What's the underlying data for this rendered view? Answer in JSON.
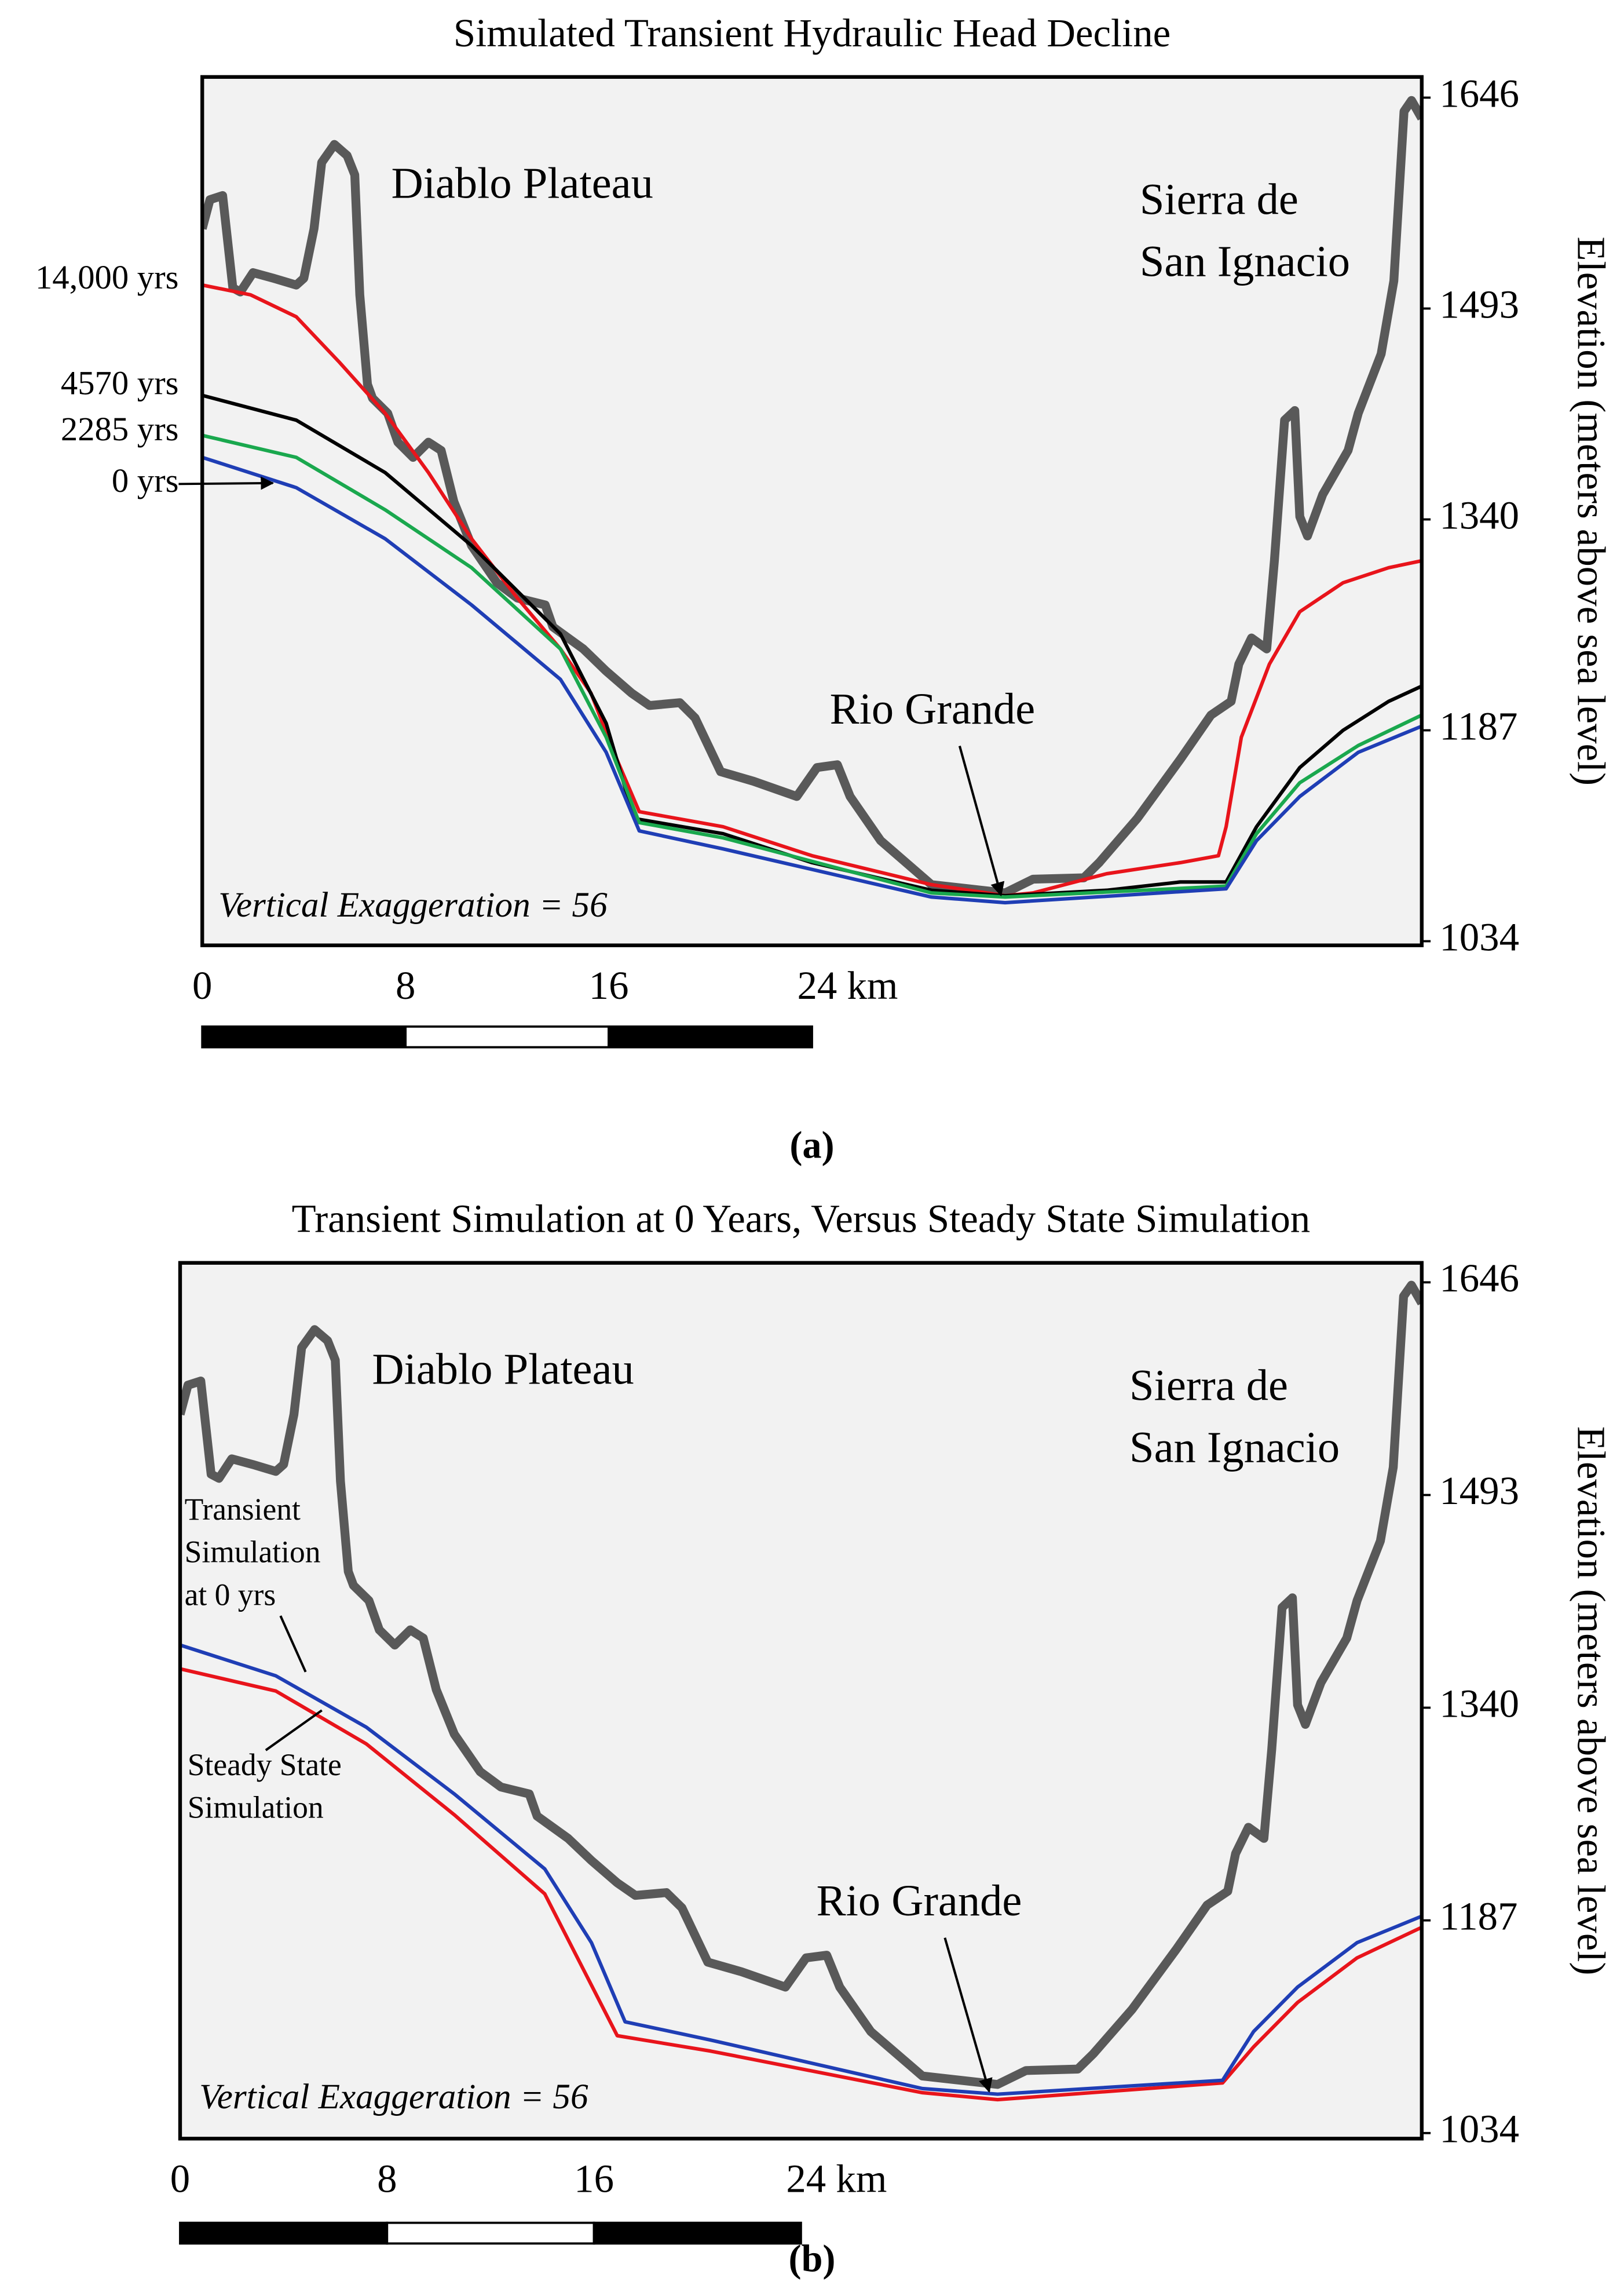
{
  "chart_data": [
    {
      "type": "line",
      "title": "Simulated Transient Hydraulic Head Decline",
      "panel": "(a)",
      "y_label": "Elevation (meters above sea level)",
      "xlim": [
        0,
        48
      ],
      "ylim": [
        1031,
        1661
      ],
      "yticks": [
        1034,
        1187,
        1340,
        1493,
        1646
      ],
      "y_side": "right",
      "scalebar": [
        0,
        8,
        16,
        {
          "value": 24,
          "label": "24 km"
        }
      ],
      "annotations": [
        "Diablo Plateau",
        [
          "Sierra de",
          "San Ignacio"
        ],
        "Rio Grande",
        "Vertical Exaggeration = 56"
      ],
      "series": [
        {
          "color": "#595959",
          "x": [
            0.0,
            0.3,
            0.8,
            1.2,
            1.5,
            2.0,
            2.8,
            3.7,
            4.0,
            4.4,
            4.7,
            5.2,
            5.7,
            6.0,
            6.2,
            6.5,
            6.7,
            7.3,
            7.7,
            8.3,
            8.9,
            9.4,
            9.9,
            10.6,
            11.6,
            12.4,
            13.5,
            13.8,
            15.0,
            15.9,
            16.9,
            17.6,
            18.8,
            19.4,
            20.4,
            21.7,
            23.4,
            24.2,
            25.0,
            25.5,
            26.7,
            28.7,
            31.6,
            32.7,
            34.7,
            35.3,
            36.8,
            38.5,
            39.7,
            40.5,
            40.8,
            41.3,
            41.9,
            42.2,
            42.6,
            43.0,
            43.2,
            43.5,
            44.1,
            45.1,
            45.5,
            46.4,
            46.9,
            47.3,
            47.6,
            48.0
          ],
          "values": [
            1551,
            1572,
            1575,
            1508,
            1505,
            1519,
            1515,
            1510,
            1515,
            1551,
            1599,
            1612,
            1604,
            1590,
            1503,
            1438,
            1428,
            1417,
            1396,
            1385,
            1396,
            1390,
            1353,
            1321,
            1294,
            1283,
            1278,
            1262,
            1246,
            1230,
            1214,
            1205,
            1207,
            1196,
            1157,
            1150,
            1139,
            1160,
            1162,
            1139,
            1107,
            1075,
            1069,
            1079,
            1080,
            1091,
            1123,
            1166,
            1198,
            1208,
            1235,
            1254,
            1246,
            1310,
            1412,
            1419,
            1342,
            1328,
            1358,
            1390,
            1417,
            1460,
            1513,
            1636,
            1644,
            1631
          ]
        },
        {
          "name": "14,000 yrs",
          "color": "#e8141b",
          "x": [
            0,
            1.9,
            3.7,
            5.4,
            7.2,
            8.9,
            10.6,
            12.4,
            14.1,
            15.3,
            16.2,
            17.2,
            20.5,
            24.0,
            28.7,
            31.6,
            32.7,
            35.6,
            38.5,
            40.0,
            40.3,
            40.9,
            42.0,
            43.2,
            44.9,
            46.7,
            48.0
          ],
          "values": [
            1510,
            1503,
            1487,
            1454,
            1417,
            1374,
            1326,
            1283,
            1246,
            1214,
            1171,
            1128,
            1117,
            1096,
            1075,
            1067,
            1069,
            1083,
            1091,
            1096,
            1117,
            1182,
            1235,
            1273,
            1294,
            1305,
            1310
          ]
        },
        {
          "name": "4570 yrs",
          "color": "#000000",
          "x": [
            0,
            3.7,
            7.2,
            10.6,
            14.1,
            15.9,
            17.0,
            20.5,
            24.0,
            28.7,
            31.6,
            35.6,
            38.5,
            40.3,
            41.5,
            43.2,
            44.9,
            46.7,
            48.0
          ],
          "values": [
            1430,
            1412,
            1374,
            1321,
            1257,
            1192,
            1123,
            1112,
            1091,
            1071,
            1067,
            1071,
            1077,
            1077,
            1117,
            1160,
            1187,
            1208,
            1219
          ]
        },
        {
          "name": "2285 yrs",
          "color": "#1aa84e",
          "x": [
            0,
            3.7,
            7.2,
            10.6,
            14.1,
            15.9,
            17.2,
            20.5,
            28.7,
            31.6,
            40.3,
            41.5,
            43.2,
            45.5,
            48.0
          ],
          "values": [
            1401,
            1385,
            1347,
            1305,
            1246,
            1182,
            1120,
            1109,
            1069,
            1066,
            1074,
            1112,
            1149,
            1176,
            1198
          ]
        },
        {
          "name": "0 yrs",
          "color": "#1f3eb5",
          "x": [
            0,
            3.7,
            7.2,
            10.6,
            14.1,
            15.9,
            17.2,
            20.5,
            28.7,
            31.6,
            40.3,
            41.5,
            43.2,
            45.5,
            48.0
          ],
          "values": [
            1385,
            1363,
            1326,
            1278,
            1224,
            1171,
            1114,
            1101,
            1066,
            1062,
            1072,
            1107,
            1139,
            1171,
            1190
          ]
        }
      ]
    },
    {
      "type": "line",
      "title": "Transient Simulation at 0 Years, Versus Steady State Simulation",
      "panel": "(b)",
      "y_label": "Elevation (meters above sea level)",
      "xlim": [
        0,
        48
      ],
      "ylim": [
        1030,
        1660
      ],
      "yticks": [
        1034,
        1187,
        1340,
        1493,
        1646
      ],
      "y_side": "right",
      "scalebar": [
        0,
        8,
        16,
        {
          "value": 24,
          "label": "24 km"
        }
      ],
      "annotations": [
        "Diablo Plateau",
        [
          "Sierra de",
          "San Ignacio"
        ],
        "Rio Grande",
        "Vertical Exaggeration = 56"
      ],
      "series": [
        {
          "color": "#595959",
          "x": [
            0.0,
            0.3,
            0.8,
            1.2,
            1.5,
            2.0,
            2.8,
            3.7,
            4.0,
            4.4,
            4.7,
            5.2,
            5.7,
            6.0,
            6.2,
            6.5,
            6.7,
            7.3,
            7.7,
            8.3,
            8.9,
            9.4,
            9.9,
            10.6,
            11.6,
            12.4,
            13.5,
            13.8,
            15.0,
            15.9,
            16.9,
            17.6,
            18.8,
            19.4,
            20.4,
            21.7,
            23.4,
            24.2,
            25.0,
            25.5,
            26.7,
            28.7,
            31.6,
            32.7,
            34.7,
            35.3,
            36.8,
            38.5,
            39.7,
            40.5,
            40.8,
            41.3,
            41.9,
            42.2,
            42.6,
            43.0,
            43.2,
            43.5,
            44.1,
            45.1,
            45.5,
            46.4,
            46.9,
            47.3,
            47.6,
            48.0
          ],
          "values": [
            1551,
            1572,
            1575,
            1508,
            1505,
            1519,
            1515,
            1510,
            1515,
            1551,
            1599,
            1612,
            1604,
            1590,
            1503,
            1438,
            1428,
            1417,
            1396,
            1385,
            1396,
            1390,
            1353,
            1321,
            1294,
            1283,
            1278,
            1262,
            1246,
            1230,
            1214,
            1205,
            1207,
            1196,
            1157,
            1150,
            1139,
            1160,
            1162,
            1139,
            1107,
            1075,
            1069,
            1079,
            1080,
            1091,
            1123,
            1166,
            1198,
            1208,
            1235,
            1254,
            1246,
            1310,
            1412,
            1419,
            1342,
            1328,
            1358,
            1390,
            1417,
            1460,
            1513,
            1636,
            1644,
            1631
          ]
        },
        {
          "name": [
            "Steady State",
            "Simulation"
          ],
          "color": "#e8141b",
          "x": [
            0,
            3.7,
            7.2,
            10.6,
            14.1,
            16.9,
            20.5,
            28.7,
            31.6,
            40.3,
            41.5,
            43.2,
            45.5,
            48.0
          ],
          "values": [
            1368,
            1352,
            1314,
            1263,
            1206,
            1104,
            1093,
            1063,
            1058,
            1070,
            1096,
            1128,
            1160,
            1182
          ]
        },
        {
          "name": [
            "Transient",
            "Simulation",
            "at 0 yrs"
          ],
          "color": "#1f3eb5",
          "x": [
            0,
            3.7,
            7.2,
            10.6,
            14.1,
            15.9,
            17.2,
            20.5,
            28.7,
            31.6,
            40.3,
            41.5,
            43.2,
            45.5,
            48.0
          ],
          "values": [
            1385,
            1363,
            1326,
            1278,
            1224,
            1171,
            1114,
            1101,
            1066,
            1062,
            1072,
            1107,
            1139,
            1171,
            1190
          ]
        }
      ]
    }
  ]
}
